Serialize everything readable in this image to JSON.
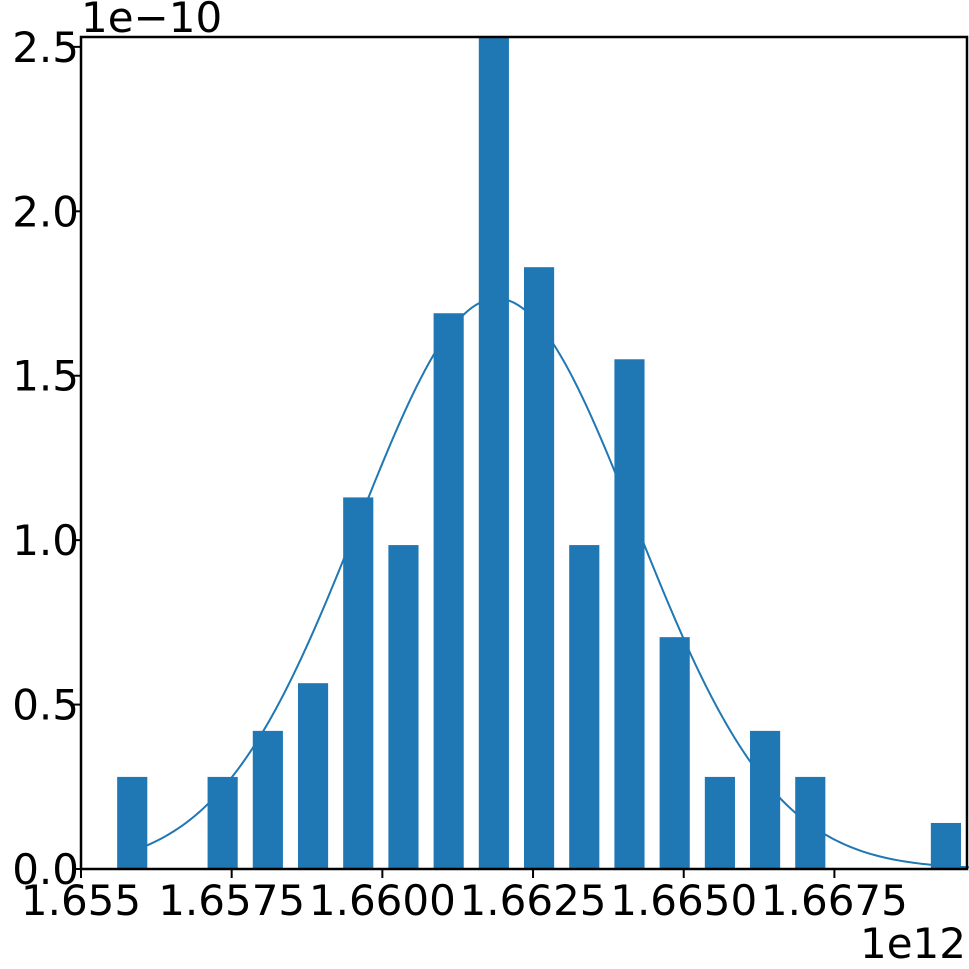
{
  "chart_data": {
    "type": "bar",
    "title": "",
    "xlabel": "",
    "ylabel": "",
    "x_offset_label": "1e12",
    "y_offset_label": "1e−10",
    "xlim": [
      1.655,
      1.6697
    ],
    "ylim": [
      0,
      2.53
    ],
    "x_ticks": [
      1.655,
      1.6575,
      1.66,
      1.6625,
      1.665,
      1.6675
    ],
    "x_tick_labels": [
      "1.655",
      "1.6575",
      "1.6600",
      "1.6625",
      "1.6650",
      "1.6675"
    ],
    "y_ticks": [
      0.0,
      0.5,
      1.0,
      1.5,
      2.0,
      2.5
    ],
    "y_tick_labels": [
      "0.0",
      "0.5",
      "1.0",
      "1.5",
      "2.0",
      "2.5"
    ],
    "bar_width": 0.0005,
    "bars": [
      {
        "x": 1.65585,
        "value": 0.28
      },
      {
        "x": 1.65735,
        "value": 0.28
      },
      {
        "x": 1.6581,
        "value": 0.42
      },
      {
        "x": 1.65885,
        "value": 0.565
      },
      {
        "x": 1.6596,
        "value": 1.13
      },
      {
        "x": 1.66035,
        "value": 0.985
      },
      {
        "x": 1.6611,
        "value": 1.69
      },
      {
        "x": 1.66185,
        "value": 2.53
      },
      {
        "x": 1.6626,
        "value": 1.83
      },
      {
        "x": 1.66335,
        "value": 0.985
      },
      {
        "x": 1.6641,
        "value": 1.55
      },
      {
        "x": 1.66485,
        "value": 0.705
      },
      {
        "x": 1.6656,
        "value": 0.28
      },
      {
        "x": 1.66635,
        "value": 0.42
      },
      {
        "x": 1.6671,
        "value": 0.28
      },
      {
        "x": 1.66935,
        "value": 0.14
      }
    ],
    "fit_curve": {
      "type": "normal",
      "mean": 1.6619,
      "sigma": 0.0023,
      "peak": 1.735,
      "x_range": [
        1.6557,
        1.6698
      ]
    },
    "colors": {
      "bar": "#1f77b4",
      "curve": "#1f77b4",
      "axes": "#000000"
    },
    "grid": false,
    "legend": "none"
  }
}
